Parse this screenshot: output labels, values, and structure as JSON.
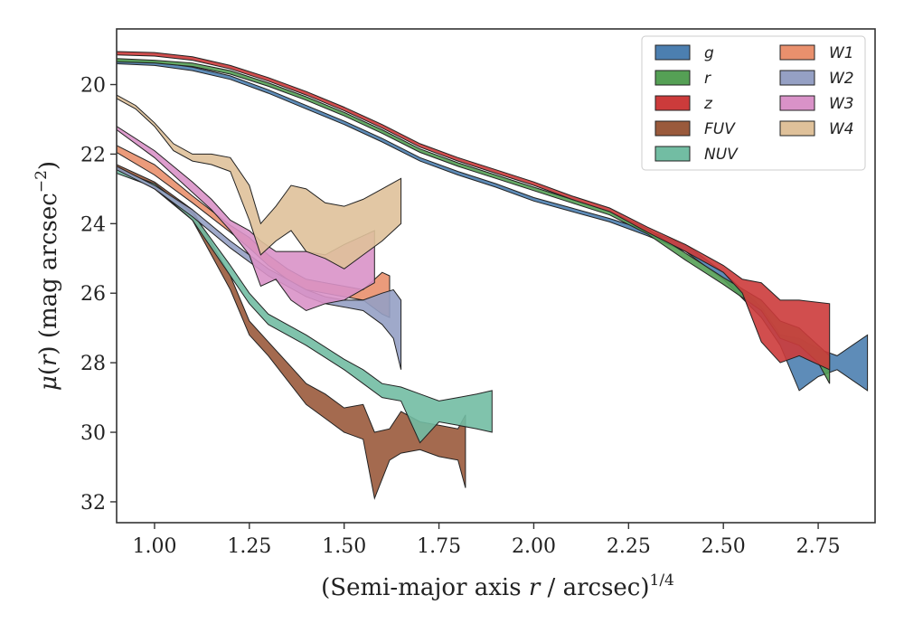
{
  "chart_data": {
    "type": "area",
    "xlabel": "(Semi-major axis r / arcsec)",
    "xlabel_parts": {
      "pre": "(Semi-major axis ",
      "var": "r",
      "post": " / arcsec)",
      "sup": "1/4"
    },
    "ylabel": "μ(r) (mag arcsec⁻²)",
    "ylabel_parts": {
      "pre": "μ(",
      "var": "r",
      "post": ") (mag arcsec",
      "sup": "−2",
      "end": ")"
    },
    "xlim": [
      0.9,
      2.9
    ],
    "ylim": [
      32.6,
      18.4
    ],
    "y_inverted": true,
    "x_ticks": [
      "1.00",
      "1.25",
      "1.50",
      "1.75",
      "2.00",
      "2.25",
      "2.50",
      "2.75"
    ],
    "x_tick_values": [
      1.0,
      1.25,
      1.5,
      1.75,
      2.0,
      2.25,
      2.5,
      2.75
    ],
    "y_ticks": [
      "20",
      "22",
      "24",
      "26",
      "28",
      "30",
      "32"
    ],
    "y_tick_values": [
      20,
      22,
      24,
      26,
      28,
      30,
      32
    ],
    "grid": false,
    "legend": {
      "placement": "top-right",
      "columns": 2
    },
    "series": [
      {
        "name": "g",
        "color": "#4c7fb0",
        "band": [
          [
            0.9,
            19.3,
            19.4
          ],
          [
            1.0,
            19.35,
            19.45
          ],
          [
            1.1,
            19.5,
            19.6
          ],
          [
            1.2,
            19.75,
            19.85
          ],
          [
            1.3,
            20.15,
            20.25
          ],
          [
            1.4,
            20.6,
            20.7
          ],
          [
            1.5,
            21.05,
            21.15
          ],
          [
            1.6,
            21.55,
            21.65
          ],
          [
            1.7,
            22.1,
            22.2
          ],
          [
            1.8,
            22.5,
            22.6
          ],
          [
            1.9,
            22.85,
            22.95
          ],
          [
            2.0,
            23.25,
            23.35
          ],
          [
            2.1,
            23.55,
            23.65
          ],
          [
            2.2,
            23.85,
            23.95
          ],
          [
            2.3,
            24.2,
            24.35
          ],
          [
            2.4,
            24.6,
            24.8
          ],
          [
            2.5,
            25.4,
            25.6
          ],
          [
            2.6,
            26.4,
            26.7
          ],
          [
            2.65,
            27.2,
            27.5
          ],
          [
            2.7,
            27.3,
            28.8
          ],
          [
            2.75,
            27.6,
            28.4
          ],
          [
            2.8,
            27.8,
            28.2
          ],
          [
            2.88,
            27.2,
            28.8
          ]
        ]
      },
      {
        "name": "r",
        "color": "#55a055",
        "band": [
          [
            0.9,
            19.25,
            19.35
          ],
          [
            1.0,
            19.3,
            19.38
          ],
          [
            1.1,
            19.38,
            19.48
          ],
          [
            1.2,
            19.6,
            19.7
          ],
          [
            1.3,
            19.95,
            20.05
          ],
          [
            1.4,
            20.35,
            20.45
          ],
          [
            1.5,
            20.8,
            20.9
          ],
          [
            1.6,
            21.3,
            21.4
          ],
          [
            1.7,
            21.85,
            21.95
          ],
          [
            1.8,
            22.25,
            22.35
          ],
          [
            1.9,
            22.6,
            22.7
          ],
          [
            2.0,
            22.95,
            23.05
          ],
          [
            2.1,
            23.3,
            23.4
          ],
          [
            2.2,
            23.65,
            23.75
          ],
          [
            2.3,
            24.15,
            24.3
          ],
          [
            2.4,
            24.85,
            25.05
          ],
          [
            2.5,
            25.55,
            25.75
          ],
          [
            2.6,
            26.2,
            26.5
          ],
          [
            2.65,
            26.8,
            27.3
          ],
          [
            2.7,
            27.0,
            27.5
          ],
          [
            2.75,
            27.5,
            28.0
          ],
          [
            2.78,
            27.8,
            28.6
          ]
        ]
      },
      {
        "name": "z",
        "color": "#cc3b3b",
        "band": [
          [
            0.9,
            19.05,
            19.15
          ],
          [
            1.0,
            19.08,
            19.18
          ],
          [
            1.1,
            19.2,
            19.3
          ],
          [
            1.2,
            19.45,
            19.55
          ],
          [
            1.3,
            19.8,
            19.9
          ],
          [
            1.4,
            20.2,
            20.3
          ],
          [
            1.5,
            20.65,
            20.75
          ],
          [
            1.6,
            21.15,
            21.25
          ],
          [
            1.7,
            21.7,
            21.8
          ],
          [
            1.8,
            22.1,
            22.2
          ],
          [
            1.9,
            22.45,
            22.55
          ],
          [
            2.0,
            22.8,
            22.9
          ],
          [
            2.1,
            23.2,
            23.3
          ],
          [
            2.2,
            23.55,
            23.65
          ],
          [
            2.3,
            24.1,
            24.25
          ],
          [
            2.4,
            24.6,
            24.8
          ],
          [
            2.5,
            25.2,
            25.4
          ],
          [
            2.55,
            25.6,
            26.0
          ],
          [
            2.6,
            25.7,
            27.4
          ],
          [
            2.65,
            26.2,
            28.0
          ],
          [
            2.7,
            26.2,
            27.8
          ],
          [
            2.78,
            26.3,
            28.2
          ]
        ]
      },
      {
        "name": "FUV",
        "color": "#9a5a3c",
        "band": [
          [
            0.9,
            22.3,
            22.4
          ],
          [
            1.0,
            22.8,
            23.0
          ],
          [
            1.1,
            23.6,
            23.9
          ],
          [
            1.2,
            25.5,
            25.9
          ],
          [
            1.25,
            26.8,
            27.2
          ],
          [
            1.3,
            27.4,
            27.8
          ],
          [
            1.35,
            28.0,
            28.5
          ],
          [
            1.4,
            28.6,
            29.2
          ],
          [
            1.45,
            28.9,
            29.6
          ],
          [
            1.5,
            29.3,
            30.0
          ],
          [
            1.55,
            29.2,
            30.2
          ],
          [
            1.58,
            30.0,
            31.9
          ],
          [
            1.62,
            29.9,
            30.8
          ],
          [
            1.65,
            29.4,
            30.6
          ],
          [
            1.7,
            29.7,
            30.5
          ],
          [
            1.75,
            29.8,
            30.7
          ],
          [
            1.8,
            29.9,
            30.8
          ],
          [
            1.82,
            29.5,
            31.6
          ]
        ]
      },
      {
        "name": "NUV",
        "color": "#72bda3",
        "band": [
          [
            0.9,
            22.45,
            22.55
          ],
          [
            1.0,
            22.85,
            22.95
          ],
          [
            1.1,
            23.7,
            23.9
          ],
          [
            1.2,
            25.2,
            25.5
          ],
          [
            1.25,
            26.0,
            26.3
          ],
          [
            1.3,
            26.6,
            26.9
          ],
          [
            1.4,
            27.2,
            27.5
          ],
          [
            1.5,
            27.9,
            28.2
          ],
          [
            1.55,
            28.2,
            28.6
          ],
          [
            1.6,
            28.6,
            29.0
          ],
          [
            1.65,
            28.7,
            29.1
          ],
          [
            1.7,
            28.9,
            30.3
          ],
          [
            1.75,
            29.1,
            29.7
          ],
          [
            1.8,
            29.0,
            29.8
          ],
          [
            1.85,
            28.9,
            29.9
          ],
          [
            1.89,
            28.8,
            30.0
          ]
        ]
      },
      {
        "name": "W1",
        "color": "#e9906d",
        "band": [
          [
            0.9,
            21.75,
            21.95
          ],
          [
            1.0,
            22.3,
            22.6
          ],
          [
            1.1,
            23.2,
            23.4
          ],
          [
            1.2,
            24.05,
            24.25
          ],
          [
            1.25,
            24.4,
            24.7
          ],
          [
            1.3,
            24.9,
            25.2
          ],
          [
            1.35,
            25.3,
            25.6
          ],
          [
            1.4,
            25.6,
            25.9
          ],
          [
            1.45,
            25.7,
            26.0
          ],
          [
            1.5,
            25.8,
            26.1
          ],
          [
            1.55,
            25.9,
            26.2
          ],
          [
            1.6,
            25.4,
            26.6
          ],
          [
            1.62,
            25.5,
            26.7
          ]
        ]
      },
      {
        "name": "W2",
        "color": "#95a0c4",
        "band": [
          [
            0.9,
            22.35,
            22.45
          ],
          [
            1.0,
            22.9,
            23.0
          ],
          [
            1.1,
            23.6,
            23.8
          ],
          [
            1.2,
            24.5,
            24.7
          ],
          [
            1.25,
            24.9,
            25.1
          ],
          [
            1.3,
            25.3,
            25.5
          ],
          [
            1.35,
            25.6,
            25.8
          ],
          [
            1.4,
            25.9,
            26.1
          ],
          [
            1.45,
            26.1,
            26.3
          ],
          [
            1.5,
            26.2,
            26.4
          ],
          [
            1.55,
            26.2,
            26.5
          ],
          [
            1.6,
            26.0,
            26.9
          ],
          [
            1.63,
            25.9,
            27.3
          ],
          [
            1.65,
            26.2,
            28.2
          ]
        ]
      },
      {
        "name": "W3",
        "color": "#d992c8",
        "band": [
          [
            0.9,
            21.2,
            21.3
          ],
          [
            1.0,
            21.9,
            22.1
          ],
          [
            1.1,
            22.8,
            23.1
          ],
          [
            1.15,
            23.3,
            23.6
          ],
          [
            1.2,
            23.9,
            24.2
          ],
          [
            1.25,
            24.2,
            24.9
          ],
          [
            1.28,
            24.5,
            25.8
          ],
          [
            1.32,
            24.8,
            25.6
          ],
          [
            1.36,
            24.8,
            26.2
          ],
          [
            1.4,
            24.8,
            26.5
          ],
          [
            1.45,
            24.9,
            26.3
          ],
          [
            1.5,
            24.6,
            26.2
          ],
          [
            1.58,
            24.2,
            25.7
          ]
        ]
      },
      {
        "name": "W4",
        "color": "#dfc19a",
        "band": [
          [
            0.9,
            20.3,
            20.4
          ],
          [
            0.95,
            20.6,
            20.7
          ],
          [
            1.0,
            21.1,
            21.2
          ],
          [
            1.05,
            21.7,
            21.9
          ],
          [
            1.1,
            22.0,
            22.2
          ],
          [
            1.15,
            22.0,
            22.3
          ],
          [
            1.2,
            22.1,
            22.5
          ],
          [
            1.25,
            22.9,
            23.9
          ],
          [
            1.28,
            24.0,
            24.9
          ],
          [
            1.32,
            23.5,
            24.5
          ],
          [
            1.36,
            22.9,
            24.2
          ],
          [
            1.4,
            23.0,
            24.8
          ],
          [
            1.45,
            23.4,
            25.0
          ],
          [
            1.5,
            23.5,
            25.3
          ],
          [
            1.55,
            23.3,
            24.9
          ],
          [
            1.6,
            23.0,
            24.5
          ],
          [
            1.65,
            22.7,
            24.0
          ]
        ]
      }
    ]
  }
}
